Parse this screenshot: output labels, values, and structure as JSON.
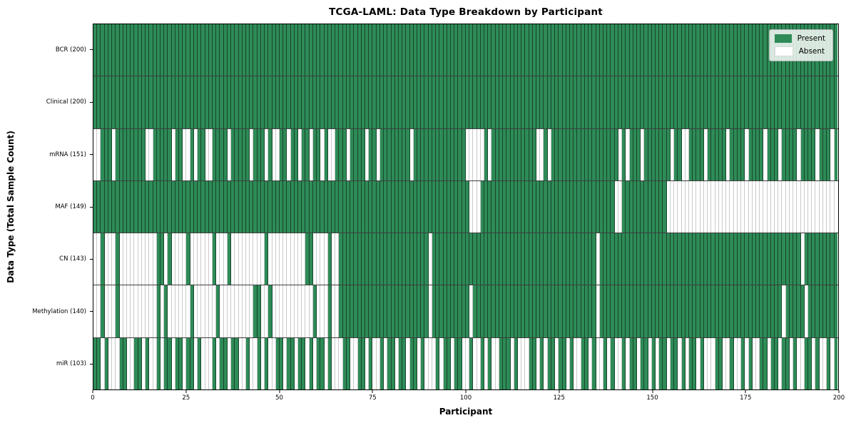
{
  "chart_data": {
    "type": "heatmap",
    "title": "TCGA-LAML: Data Type Breakdown by Participant",
    "xlabel": "Participant",
    "ylabel": "Data Type (Total Sample Count)",
    "x_range": [
      0,
      200
    ],
    "n_participants": 200,
    "x_ticks": [
      0,
      25,
      50,
      75,
      100,
      125,
      150,
      175,
      200
    ],
    "grid": "row-separators",
    "colors": {
      "present": "#2e8b57",
      "absent": "#ffffff",
      "cell_edge_present": "rgba(0,0,0,0.50)",
      "cell_edge_absent": "#c9c9c9",
      "row_separator": "#3d3d3d",
      "spine": "#000000"
    },
    "legend": {
      "position": "upper right",
      "entries": [
        {
          "label": "Present",
          "color": "#2e8b57"
        },
        {
          "label": "Absent",
          "color": "#ffffff"
        }
      ]
    },
    "rows": [
      {
        "name": "BCR",
        "label": "BCR (200)",
        "present_count": 200,
        "runs": [
          [
            1,
            200
          ]
        ]
      },
      {
        "name": "Clinical",
        "label": "Clinical (200)",
        "present_count": 200,
        "runs": [
          [
            1,
            200
          ]
        ]
      },
      {
        "name": "mRNA",
        "label": "mRNA (151)",
        "present_count": 151,
        "runs": [
          [
            0,
            2
          ],
          [
            1,
            3
          ],
          [
            0,
            1
          ],
          [
            1,
            8
          ],
          [
            0,
            2
          ],
          [
            1,
            5
          ],
          [
            0,
            1
          ],
          [
            1,
            2
          ],
          [
            0,
            2
          ],
          [
            1,
            1
          ],
          [
            0,
            1
          ],
          [
            1,
            2
          ],
          [
            0,
            2
          ],
          [
            1,
            4
          ],
          [
            0,
            1
          ],
          [
            1,
            5
          ],
          [
            0,
            1
          ],
          [
            1,
            3
          ],
          [
            0,
            1
          ],
          [
            1,
            1
          ],
          [
            0,
            2
          ],
          [
            1,
            2
          ],
          [
            0,
            1
          ],
          [
            1,
            2
          ],
          [
            0,
            1
          ],
          [
            1,
            2
          ],
          [
            0,
            1
          ],
          [
            1,
            2
          ],
          [
            0,
            1
          ],
          [
            1,
            1
          ],
          [
            0,
            2
          ],
          [
            1,
            3
          ],
          [
            0,
            1
          ],
          [
            1,
            4
          ],
          [
            0,
            1
          ],
          [
            1,
            2
          ],
          [
            0,
            1
          ],
          [
            1,
            8
          ],
          [
            0,
            1
          ],
          [
            1,
            14
          ],
          [
            0,
            5
          ],
          [
            1,
            1
          ],
          [
            0,
            1
          ],
          [
            1,
            12
          ],
          [
            0,
            2
          ],
          [
            1,
            1
          ],
          [
            0,
            1
          ],
          [
            1,
            18
          ],
          [
            0,
            1
          ],
          [
            1,
            1
          ],
          [
            0,
            1
          ],
          [
            1,
            3
          ],
          [
            0,
            1
          ],
          [
            1,
            7
          ],
          [
            0,
            1
          ],
          [
            1,
            2
          ],
          [
            0,
            2
          ],
          [
            1,
            4
          ],
          [
            0,
            1
          ],
          [
            1,
            5
          ],
          [
            0,
            1
          ],
          [
            1,
            4
          ],
          [
            0,
            1
          ],
          [
            1,
            4
          ],
          [
            0,
            1
          ],
          [
            1,
            3
          ],
          [
            0,
            1
          ],
          [
            1,
            4
          ],
          [
            0,
            1
          ],
          [
            1,
            4
          ],
          [
            0,
            1
          ],
          [
            1,
            3
          ],
          [
            0,
            1
          ],
          [
            1,
            1
          ]
        ]
      },
      {
        "name": "MAF",
        "label": "MAF (149)",
        "present_count": 149,
        "runs": [
          [
            1,
            101
          ],
          [
            0,
            3
          ],
          [
            1,
            36
          ],
          [
            0,
            2
          ],
          [
            1,
            12
          ],
          [
            0,
            46
          ]
        ]
      },
      {
        "name": "CN",
        "label": "CN (143)",
        "present_count": 143,
        "runs": [
          [
            0,
            2
          ],
          [
            1,
            1
          ],
          [
            0,
            3
          ],
          [
            1,
            1
          ],
          [
            0,
            10
          ],
          [
            1,
            2
          ],
          [
            0,
            1
          ],
          [
            1,
            1
          ],
          [
            0,
            4
          ],
          [
            1,
            1
          ],
          [
            0,
            6
          ],
          [
            1,
            1
          ],
          [
            0,
            3
          ],
          [
            1,
            1
          ],
          [
            0,
            9
          ],
          [
            1,
            1
          ],
          [
            0,
            10
          ],
          [
            1,
            2
          ],
          [
            0,
            4
          ],
          [
            1,
            1
          ],
          [
            0,
            2
          ],
          [
            1,
            24
          ],
          [
            0,
            1
          ],
          [
            1,
            44
          ],
          [
            0,
            1
          ],
          [
            1,
            54
          ],
          [
            0,
            1
          ],
          [
            1,
            9
          ]
        ]
      },
      {
        "name": "Methylation",
        "label": "Methylation (140)",
        "present_count": 140,
        "runs": [
          [
            0,
            2
          ],
          [
            1,
            1
          ],
          [
            0,
            3
          ],
          [
            1,
            1
          ],
          [
            0,
            10
          ],
          [
            1,
            1
          ],
          [
            0,
            1
          ],
          [
            1,
            1
          ],
          [
            0,
            6
          ],
          [
            1,
            1
          ],
          [
            0,
            6
          ],
          [
            1,
            1
          ],
          [
            0,
            9
          ],
          [
            1,
            2
          ],
          [
            0,
            2
          ],
          [
            1,
            1
          ],
          [
            0,
            11
          ],
          [
            1,
            1
          ],
          [
            0,
            3
          ],
          [
            1,
            1
          ],
          [
            0,
            2
          ],
          [
            1,
            24
          ],
          [
            0,
            1
          ],
          [
            1,
            10
          ],
          [
            0,
            1
          ],
          [
            1,
            33
          ],
          [
            0,
            1
          ],
          [
            1,
            49
          ],
          [
            0,
            1
          ],
          [
            1,
            5
          ],
          [
            0,
            1
          ],
          [
            1,
            8
          ]
        ]
      },
      {
        "name": "miR",
        "label": "miR (103)",
        "present_count": 103,
        "segments": [
          "1101000110",
          "0110100101",
          "1011011010",
          "0010110110",
          "0100101001",
          "1011011010",
          "1101000110",
          "0110100101",
          "1011011010",
          "0010110110",
          "0100101001",
          "1101000110",
          "1011011010",
          "0110100101",
          "0010110110",
          "1011011010",
          "1101000110",
          "0100101001",
          "1011011010",
          "0110100101"
        ]
      }
    ]
  }
}
